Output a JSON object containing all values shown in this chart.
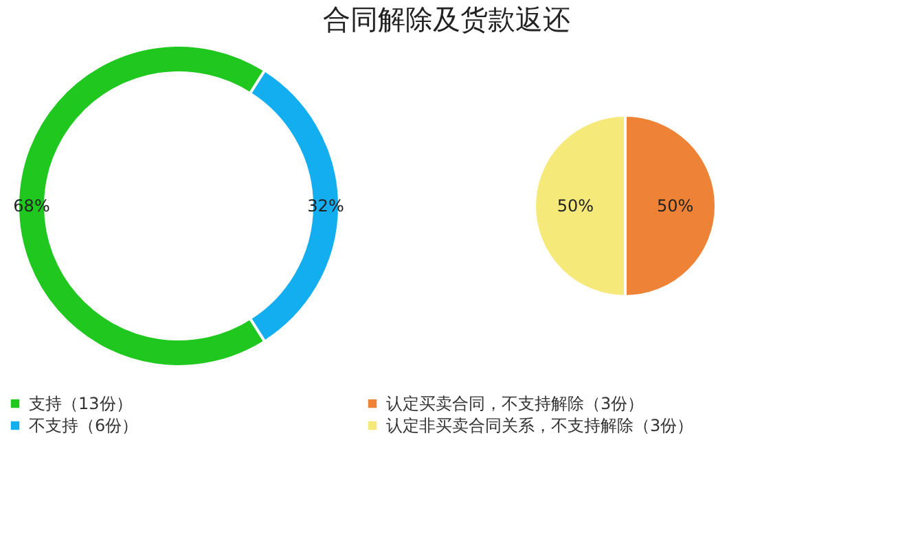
{
  "chart_data": [
    {
      "type": "donut",
      "title": "合同解除及货款返还",
      "categories": [
        "支持（13份）",
        "不支持（6份）"
      ],
      "values": [
        68,
        32
      ],
      "colors": [
        "#1fc71f",
        "#13aef0"
      ],
      "value_labels": [
        "68%",
        "32%"
      ],
      "legend": "bottom"
    },
    {
      "type": "pie",
      "categories": [
        "认定买卖合同，不支持解除（3份）",
        "认定非买卖合同关系，不支持解除（3份）"
      ],
      "values": [
        50,
        50
      ],
      "colors": [
        "#ee8236",
        "#f5e97a"
      ],
      "value_labels": [
        "50%",
        "50%"
      ],
      "legend": "bottom"
    }
  ]
}
